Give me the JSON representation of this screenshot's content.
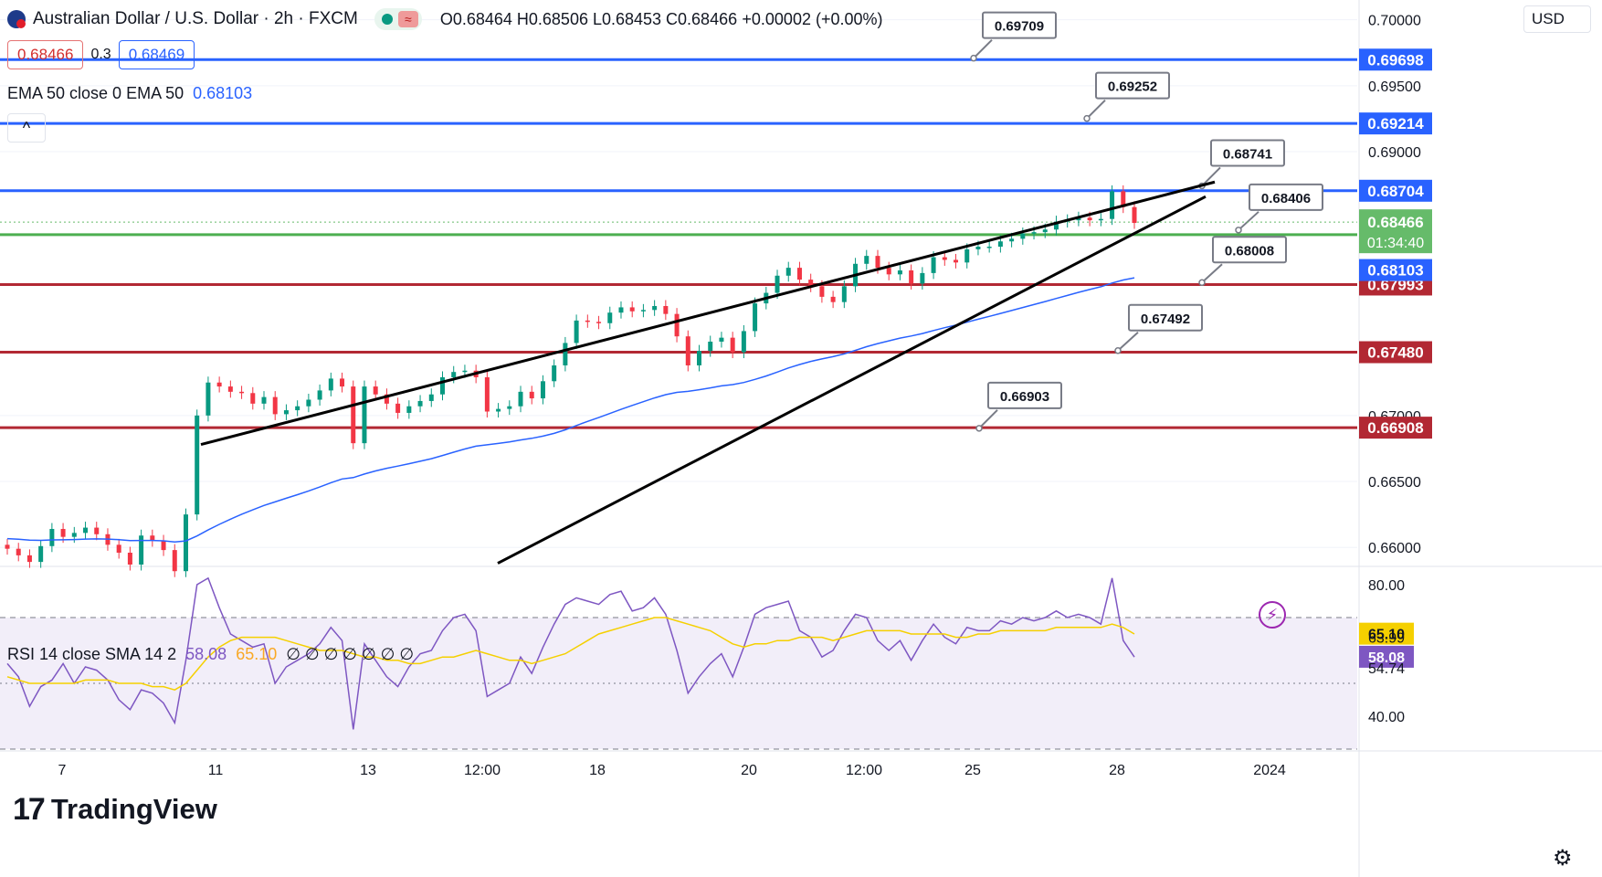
{
  "header": {
    "symbol_title": "Australian Dollar / U.S. Dollar · 2h · FXCM",
    "ohlc": "O0.68464 H0.68506 L0.68453 C0.68466",
    "change": "+0.00002 (+0.00%)",
    "sell_price": "0.68466",
    "spread": "0.3",
    "buy_price": "0.68469",
    "currency": "USD",
    "collapse_glyph": "^"
  },
  "ema_legend": {
    "label": "EMA 50 close 0 EMA 50",
    "value": "0.68103"
  },
  "rsi_legend": {
    "label": "RSI 14 close SMA 14 2",
    "rsi": "58.08",
    "sma": "65.10",
    "rest": "∅ ∅ ∅ ∅ ∅ ∅ ∅"
  },
  "brand": {
    "logo_text": "TradingView"
  },
  "icons": {
    "flag": "aud-usd-flag-icon",
    "settings": "gear-icon",
    "alert": "lightning-icon"
  },
  "colors": {
    "up": "#089981",
    "down": "#f23645",
    "resistance": "#2962ff",
    "support": "#b22833",
    "current": "#4caf50",
    "ema": "#2962ff",
    "rsi": "#7e57c2",
    "rsi_sma": "#f5d000",
    "trendline": "#000000"
  },
  "chart_data": [
    {
      "type": "candlestick",
      "title": "Australian Dollar / U.S. Dollar · 2h · FXCM",
      "x_ticks": [
        "7",
        "11",
        "13",
        "12:00",
        "18",
        "20",
        "12:00",
        "25",
        "28",
        "2024"
      ],
      "y_ticks": [
        "0.70000",
        "0.69500",
        "0.69000",
        "0.67000",
        "0.66500",
        "0.66000"
      ],
      "ylim": [
        0.6587,
        0.7015
      ],
      "closes": [
        0.6599,
        0.6594,
        0.6589,
        0.6601,
        0.6614,
        0.6608,
        0.6611,
        0.6615,
        0.661,
        0.6602,
        0.6596,
        0.6587,
        0.6609,
        0.6605,
        0.6598,
        0.6582,
        0.6625,
        0.67,
        0.6725,
        0.6722,
        0.6718,
        0.6717,
        0.6709,
        0.6714,
        0.6701,
        0.6704,
        0.6707,
        0.6712,
        0.6719,
        0.6728,
        0.6722,
        0.6679,
        0.6722,
        0.6716,
        0.6709,
        0.6702,
        0.6707,
        0.6711,
        0.6716,
        0.6729,
        0.6733,
        0.6734,
        0.6729,
        0.6703,
        0.6705,
        0.6707,
        0.6718,
        0.6713,
        0.6726,
        0.6738,
        0.6755,
        0.6772,
        0.6771,
        0.677,
        0.6778,
        0.6782,
        0.6779,
        0.678,
        0.6783,
        0.6777,
        0.676,
        0.6738,
        0.6749,
        0.6756,
        0.6759,
        0.6748,
        0.6764,
        0.6785,
        0.6793,
        0.6806,
        0.6812,
        0.6803,
        0.6798,
        0.679,
        0.6786,
        0.6798,
        0.6815,
        0.6821,
        0.6812,
        0.6807,
        0.681,
        0.68,
        0.6808,
        0.682,
        0.6818,
        0.6816,
        0.6826,
        0.6828,
        0.6828,
        0.6832,
        0.6834,
        0.6838,
        0.6839,
        0.6841,
        0.6847,
        0.6848,
        0.685,
        0.6848,
        0.6849,
        0.687,
        0.6858,
        0.6846
      ],
      "levels": [
        {
          "value": "0.69698",
          "label": "0.69709",
          "kind": "resistance"
        },
        {
          "value": "0.69214",
          "label": "0.69252",
          "kind": "resistance"
        },
        {
          "value": "0.68704",
          "label": "0.68741",
          "kind": "resistance"
        },
        {
          "value": "0.68371",
          "label": "0.68406",
          "kind": "current"
        },
        {
          "value": "0.67993",
          "label": "0.68008",
          "kind": "support"
        },
        {
          "value": "0.67480",
          "label": "0.67492",
          "kind": "support"
        },
        {
          "value": "0.66908",
          "label": "0.66903",
          "kind": "support"
        }
      ],
      "price_tags": [
        {
          "text": "0.68466",
          "sub": "01:34:40",
          "value": 0.68466,
          "color": "#66bb6a"
        },
        {
          "text": "0.68103",
          "value": 0.68103,
          "color": "#2962ff"
        }
      ],
      "trendlines": [
        {
          "name": "upper",
          "from": [
            0,
            0.6678
          ],
          "to": [
            1,
            0.6877
          ]
        },
        {
          "name": "lower",
          "from": [
            0,
            0.6588
          ],
          "to": [
            1,
            0.6866
          ]
        }
      ],
      "series": [
        {
          "name": "EMA 50",
          "last": 0.68103
        }
      ]
    },
    {
      "type": "line",
      "title": "RSI 14 close SMA 14 2",
      "y_ticks": [
        "80.00",
        "40.00"
      ],
      "ylim": [
        30,
        85
      ],
      "bands": [
        70,
        30
      ],
      "price_tags": [
        {
          "text": "65.10",
          "value": 65.1,
          "color": "#f5d000"
        },
        {
          "text": "63.99",
          "value": 63.99,
          "color": null
        },
        {
          "text": "58.08",
          "value": 58.08,
          "color": "#7e57c2"
        },
        {
          "text": "54.74",
          "value": 54.74,
          "color": null
        }
      ],
      "series": [
        {
          "name": "RSI",
          "values": [
            56,
            52,
            43,
            49,
            51,
            56,
            50,
            55,
            54,
            51,
            45,
            42,
            48,
            47,
            44,
            38,
            57,
            80,
            82,
            73,
            65,
            63,
            61,
            62,
            50,
            55,
            57,
            59,
            62,
            67,
            63,
            36,
            62,
            57,
            52,
            49,
            55,
            59,
            60,
            66,
            70,
            71,
            66,
            46,
            48,
            50,
            58,
            53,
            61,
            68,
            74,
            76,
            75,
            74,
            77,
            78,
            72,
            73,
            76,
            71,
            60,
            47,
            52,
            56,
            59,
            52,
            61,
            71,
            73,
            74,
            75,
            66,
            64,
            58,
            60,
            66,
            71,
            70,
            63,
            60,
            63,
            57,
            63,
            68,
            64,
            62,
            67,
            66,
            66,
            69,
            68,
            70,
            69,
            70,
            72,
            70,
            71,
            70,
            68,
            82,
            63,
            58
          ]
        },
        {
          "name": "SMA",
          "values": [
            52,
            51,
            50,
            50,
            50,
            50,
            50,
            51,
            51,
            51,
            50,
            50,
            50,
            49,
            49,
            48,
            50,
            54,
            58,
            61,
            63,
            64,
            64,
            64,
            64,
            63,
            62,
            61,
            60,
            60,
            60,
            59,
            58,
            58,
            57,
            57,
            56,
            56,
            57,
            58,
            58,
            59,
            60,
            59,
            58,
            57,
            57,
            56,
            57,
            58,
            59,
            61,
            63,
            65,
            66,
            67,
            68,
            69,
            70,
            70,
            69,
            68,
            67,
            66,
            64,
            62,
            61,
            62,
            62,
            63,
            63,
            64,
            64,
            64,
            63,
            64,
            65,
            66,
            66,
            66,
            66,
            65,
            65,
            65,
            65,
            64,
            64,
            65,
            65,
            66,
            66,
            66,
            66,
            66,
            67,
            67,
            67,
            67,
            67,
            68,
            67,
            65
          ]
        }
      ]
    }
  ]
}
